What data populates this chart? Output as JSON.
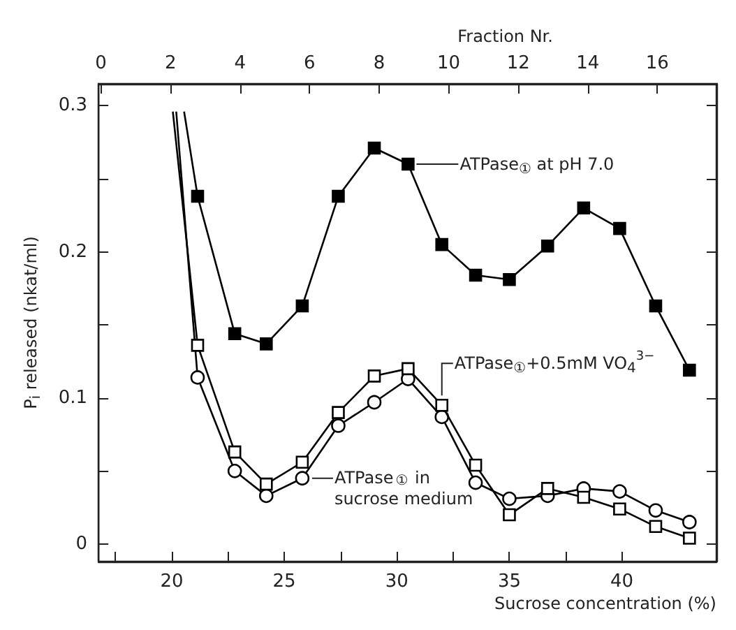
{
  "chart_data": {
    "type": "line",
    "xlabel": "Sucrose concentration (%)",
    "ylabel": "P$_{i}$ released (nkat/ml)",
    "x2label": "Fraction Nr.",
    "xlim": [
      16.75,
      44.2
    ],
    "xticks": [
      {
        "value": 17.5,
        "label": null
      },
      20,
      {
        "value": 22.5,
        "label": null
      },
      25,
      {
        "value": 27.5,
        "label": null
      },
      30,
      {
        "value": 32.5,
        "label": null
      },
      35,
      {
        "value": 37.5,
        "label": null
      },
      40
    ],
    "x2lim": [
      -0.07,
      17.7
    ],
    "x2ticks": [
      0,
      2,
      4,
      6,
      8,
      10,
      12,
      14,
      16
    ],
    "ylim": [
      -0.012,
      0.315
    ],
    "yticks": [
      0,
      {
        "value": 0.05,
        "label": null
      },
      0.1,
      {
        "value": 0.15,
        "label": null
      },
      0.2,
      {
        "value": 0.25,
        "label": null
      },
      0.3
    ],
    "series": [
      {
        "color": "#000000",
        "marker": "square",
        "x": [
          20.55,
          21.15,
          22.8,
          24.2,
          25.8,
          27.4,
          29.0,
          30.5,
          32.0,
          33.5,
          35.0,
          36.7,
          38.3,
          39.9,
          41.5,
          43.0
        ],
        "values": [
          0.296,
          0.238,
          0.144,
          0.137,
          0.163,
          0.238,
          0.271,
          0.26,
          0.205,
          0.184,
          0.181,
          0.204,
          0.23,
          0.216,
          0.163,
          0.119
        ],
        "colors": [
          null,
          "#000000",
          "#000000",
          "#000000",
          "#000000",
          "#000000",
          "#000000",
          "#000000",
          "#000000",
          "#000000",
          "#000000",
          "#000000",
          "#000000",
          "#000000",
          "#000000",
          "#000000"
        ]
      },
      {
        "color": "#000000",
        "marker": "square",
        "x": [
          20.05,
          21.15,
          22.8,
          24.2,
          25.8,
          27.4,
          29.0,
          30.5,
          32.0,
          33.5,
          35.0,
          36.7,
          38.3,
          39.9,
          41.5,
          43.0
        ],
        "values": [
          0.296,
          0.136,
          0.063,
          0.041,
          0.056,
          0.09,
          0.115,
          0.12,
          0.095,
          0.054,
          0.02,
          0.038,
          0.032,
          0.024,
          0.012,
          0.004
        ],
        "colors": [
          null,
          "#ffffff",
          "#ffffff",
          "#ffffff",
          "#ffffff",
          "#ffffff",
          "#ffffff",
          "#ffffff",
          "#ffffff",
          "#ffffff",
          "#ffffff",
          "#ffffff",
          "#ffffff",
          "#ffffff",
          "#ffffff",
          "#ffffff"
        ]
      },
      {
        "color": "#000000",
        "marker": "circle",
        "x": [
          20.2,
          21.15,
          22.8,
          24.2,
          25.8,
          27.4,
          29.0,
          30.5,
          32.0,
          33.5,
          35.0,
          36.7,
          38.3,
          39.9,
          41.5,
          43.0
        ],
        "values": [
          0.296,
          0.114,
          0.05,
          0.033,
          0.045,
          0.081,
          0.097,
          0.113,
          0.087,
          0.042,
          0.031,
          0.033,
          0.038,
          0.036,
          0.023,
          0.015
        ],
        "colors": [
          null,
          "#ffffff",
          "#ffffff",
          "#ffffff",
          "#ffffff",
          "#ffffff",
          "#ffffff",
          "#ffffff",
          "#ffffff",
          "#ffffff",
          "#ffffff",
          "#ffffff",
          "#ffffff",
          "#ffffff",
          "#ffffff",
          "#ffffff"
        ]
      }
    ],
    "annotations": [
      {
        "text": "ATPase$_{①}$ at pH 7.0",
        "x": 30.5,
        "y": 0.26
      },
      {
        "text": "ATPase$_{①}$+0.5mM VO$_{4}$$^{3−}$",
        "x": 32.0,
        "y": 0.095
      },
      {
        "text": "ATPase$_{①}$ in sucrose medium",
        "x": 25.8,
        "y": 0.045
      }
    ]
  }
}
